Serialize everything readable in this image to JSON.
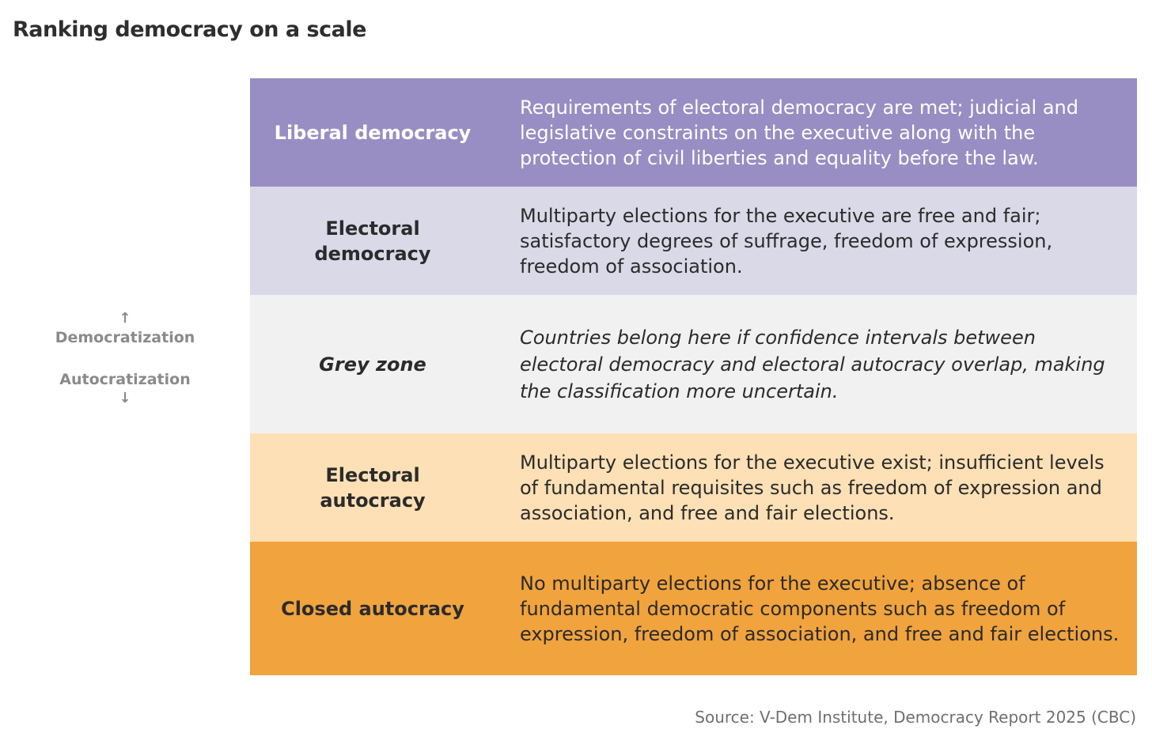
{
  "title": "Ranking democracy on a scale",
  "axis": {
    "up_arrow": "↑",
    "up_label": "Democratization",
    "down_label": "Autocratization",
    "down_arrow": "↓"
  },
  "rows": [
    {
      "category": "Liberal democracy",
      "description": "Requirements of electoral democracy are met; judicial and legislative constraints on the executive along with the protection of civil liberties and equality before the law.",
      "bg_color": "#988ec3",
      "text_color": "#ffffff"
    },
    {
      "category": "Electoral democracy",
      "description": "Multiparty elections for the executive are free and fair; satisfactory degrees of suffrage, freedom of expression, freedom of association.",
      "bg_color": "#d9d9e8",
      "text_color": "#2b2b2b"
    },
    {
      "category": "Grey zone",
      "description": "Countries belong here if confidence intervals between electoral democracy and electoral autocracy overlap, making the classification more uncertain.",
      "bg_color": "#f1f1f1",
      "text_color": "#2b2b2b"
    },
    {
      "category": "Electoral autocracy",
      "description": "Multiparty elections for the executive exist; insufficient levels of fundamental requisites such as freedom of expression and association, and free and fair elections.",
      "bg_color": "#fde0b5",
      "text_color": "#2b2b2b"
    },
    {
      "category": "Closed autocracy",
      "description": "No multiparty elections for the executive; absence of fundamental democratic components such as freedom of expression, freedom of association, and free and fair elections.",
      "bg_color": "#f1a33e",
      "text_color": "#2b2b2b"
    }
  ],
  "source": "Source: V-Dem Institute, Democracy Report 2025 (CBC)"
}
